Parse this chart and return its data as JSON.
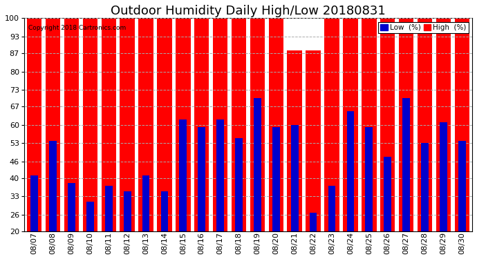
{
  "title": "Outdoor Humidity Daily High/Low 20180831",
  "copyright_text": "Copyright 2018 Cartronics.com",
  "dates": [
    "08/07",
    "08/08",
    "08/09",
    "08/10",
    "08/11",
    "08/12",
    "08/13",
    "08/14",
    "08/15",
    "08/16",
    "08/17",
    "08/18",
    "08/19",
    "08/20",
    "08/21",
    "08/22",
    "08/23",
    "08/24",
    "08/25",
    "08/26",
    "08/27",
    "08/28",
    "08/29",
    "08/30"
  ],
  "high_values": [
    100,
    100,
    100,
    100,
    100,
    100,
    100,
    100,
    100,
    100,
    100,
    100,
    100,
    100,
    88,
    88,
    100,
    100,
    100,
    100,
    100,
    100,
    100,
    100
  ],
  "low_values": [
    41,
    54,
    38,
    31,
    37,
    35,
    41,
    35,
    62,
    59,
    62,
    55,
    70,
    59,
    60,
    27,
    37,
    65,
    59,
    48,
    70,
    53,
    61,
    54
  ],
  "high_color": "#ff0000",
  "low_color": "#0000cc",
  "bg_color": "#ffffff",
  "grid_color": "#aaaaaa",
  "ylim_min": 20,
  "ylim_max": 100,
  "yticks": [
    20,
    26,
    33,
    40,
    46,
    53,
    60,
    67,
    73,
    80,
    87,
    93,
    100
  ],
  "title_fontsize": 13,
  "tick_fontsize": 8,
  "legend_low_label": "Low  (%)",
  "legend_high_label": "High  (%)"
}
